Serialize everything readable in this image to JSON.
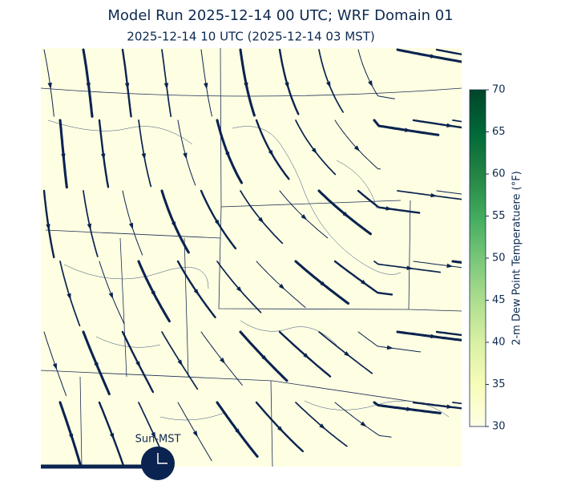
{
  "title": "Model Run 2025-12-14 00 UTC; WRF Domain 01",
  "subtitle": "2025-12-14 10 UTC  (2025-12-14 03 MST)",
  "colorbar": {
    "label": "2-m Dew Point Temperatuere (°F)",
    "lim": [
      30,
      70
    ],
    "ticks": [
      30,
      35,
      40,
      45,
      50,
      55,
      60,
      65,
      70
    ]
  },
  "timeline": {
    "label": "Sun-MST"
  }
}
